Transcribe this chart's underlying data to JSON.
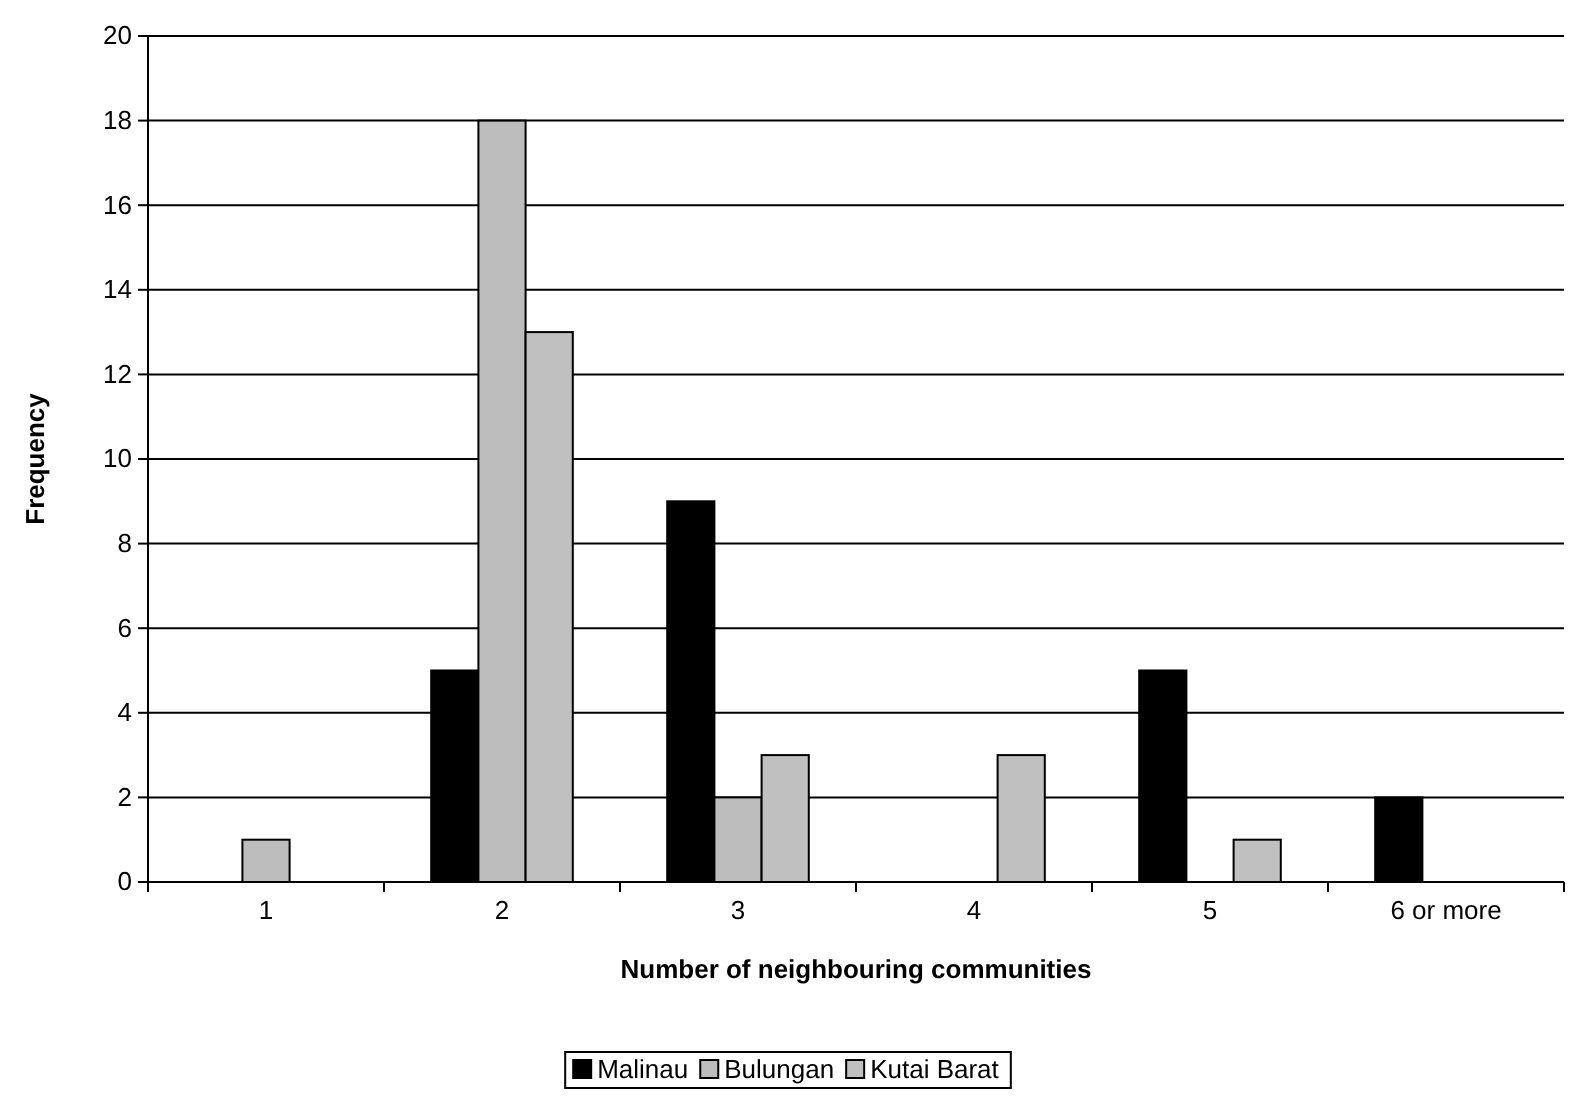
{
  "chart_data": {
    "type": "bar",
    "xlabel": "Number of neighbouring communities",
    "ylabel": "Frequency",
    "categories": [
      "1",
      "2",
      "3",
      "4",
      "5",
      "6 or more"
    ],
    "series": [
      {
        "name": "Malinau",
        "color": "#000000",
        "values": [
          0,
          5,
          9,
          0,
          5,
          2
        ]
      },
      {
        "name": "Bulungan",
        "color": "#bdbdbd",
        "values": [
          1,
          18,
          2,
          0,
          0,
          0
        ]
      },
      {
        "name": "Kutai Barat",
        "color": "#c0c0c0",
        "values": [
          0,
          13,
          3,
          3,
          1,
          0
        ]
      }
    ],
    "ylim": [
      0,
      20
    ],
    "yticks": [
      0,
      2,
      4,
      6,
      8,
      10,
      12,
      14,
      16,
      18,
      20
    ],
    "grid": "y",
    "legend": "bottom"
  }
}
